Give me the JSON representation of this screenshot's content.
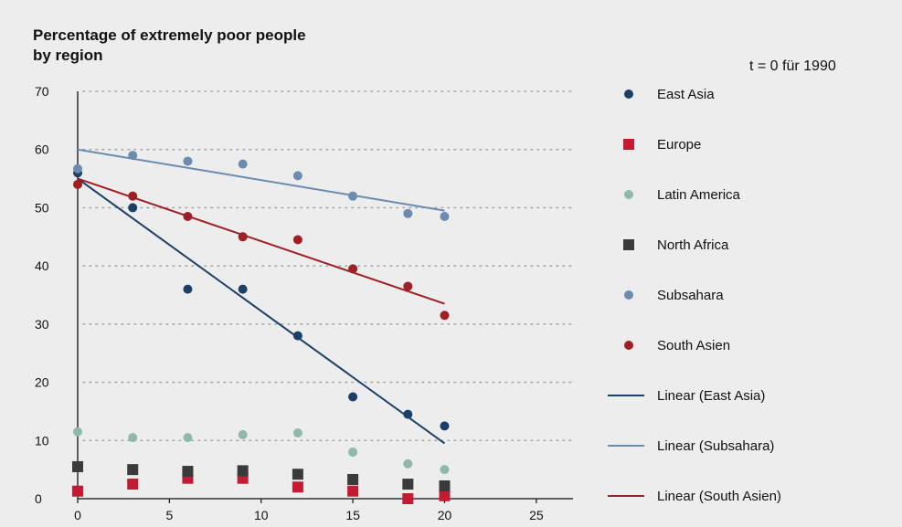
{
  "chart_data": {
    "type": "scatter",
    "title": "Percentage of extremely poor people by region",
    "title_line1": "Percentage of extremely poor people",
    "title_line2": "by region",
    "annotation": "t = 0 für 1990",
    "xlabel": "",
    "ylabel": "",
    "xlim": [
      0,
      27
    ],
    "ylim": [
      0,
      70
    ],
    "x_ticks": [
      0,
      5,
      10,
      15,
      20,
      25
    ],
    "y_ticks": [
      0,
      10,
      20,
      30,
      40,
      50,
      60,
      70
    ],
    "grid": "horizontal dotted",
    "legend_placement": "right",
    "series": [
      {
        "name": "East Asia",
        "kind": "point",
        "marker": "circle",
        "color": "#1b3f66",
        "x": [
          0,
          3,
          6,
          9,
          12,
          15,
          18,
          20
        ],
        "y": [
          56,
          50,
          36,
          36,
          28,
          17.5,
          14.5,
          12.5
        ]
      },
      {
        "name": "Europe",
        "kind": "point",
        "marker": "square",
        "color": "#c41a32",
        "x": [
          0,
          3,
          6,
          9,
          12,
          15,
          18,
          20
        ],
        "y": [
          1.3,
          2.5,
          3.5,
          3.5,
          2,
          1.3,
          0,
          0.5
        ]
      },
      {
        "name": "Latin America",
        "kind": "point",
        "marker": "circle",
        "color": "#8fb9a8",
        "x": [
          0,
          3,
          6,
          9,
          12,
          15,
          18,
          20
        ],
        "y": [
          11.5,
          10.5,
          10.5,
          11,
          11.3,
          8,
          6,
          5
        ]
      },
      {
        "name": "North Africa",
        "kind": "point",
        "marker": "square",
        "color": "#3a3a3c",
        "x": [
          0,
          3,
          6,
          9,
          12,
          15,
          18,
          20
        ],
        "y": [
          5.5,
          5,
          4.7,
          4.8,
          4.2,
          3.3,
          2.5,
          2.2
        ]
      },
      {
        "name": "Subsahara",
        "kind": "point",
        "marker": "circle",
        "color": "#6a8caf",
        "x": [
          0,
          3,
          6,
          9,
          12,
          15,
          18,
          20
        ],
        "y": [
          56.7,
          59,
          58,
          57.5,
          55.5,
          52,
          49,
          48.5
        ]
      },
      {
        "name": "South Asien",
        "kind": "point",
        "marker": "circle",
        "color": "#9e1f25",
        "x": [
          0,
          3,
          6,
          9,
          12,
          15,
          18,
          20
        ],
        "y": [
          54,
          52,
          48.5,
          45,
          44.5,
          39.5,
          36.5,
          31.5
        ]
      },
      {
        "name": "Linear (East Asia)",
        "kind": "line",
        "color": "#1b3f66",
        "x": [
          0,
          20
        ],
        "y": [
          55,
          9.5
        ]
      },
      {
        "name": "Linear (Subsahara)",
        "kind": "line",
        "color": "#6a8caf",
        "x": [
          0,
          20
        ],
        "y": [
          60,
          49.5
        ]
      },
      {
        "name": "Linear (South Asien)",
        "kind": "line",
        "color": "#9e1f25",
        "x": [
          0,
          20
        ],
        "y": [
          55,
          33.5
        ]
      }
    ]
  }
}
